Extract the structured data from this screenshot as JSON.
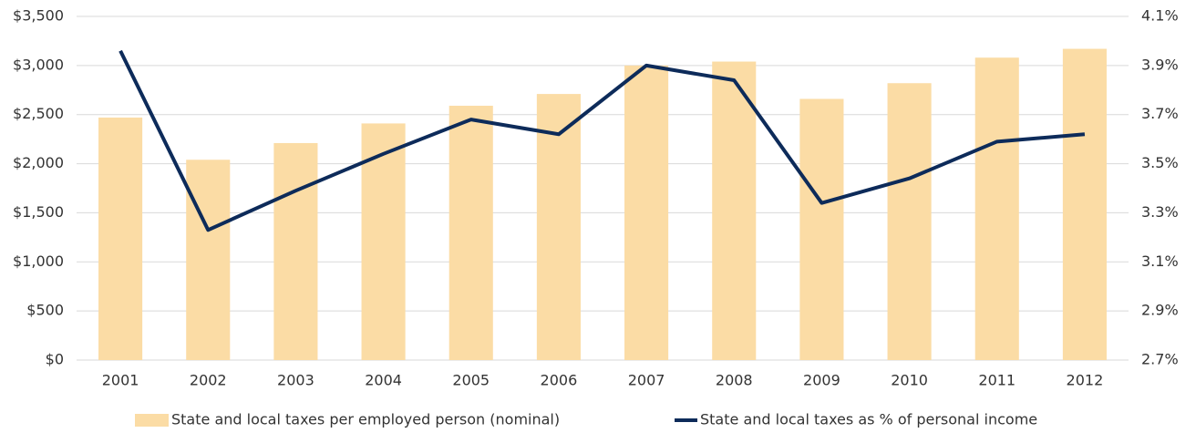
{
  "chart_data": {
    "type": "combo",
    "categories": [
      "2001",
      "2002",
      "2003",
      "2004",
      "2005",
      "2006",
      "2007",
      "2008",
      "2009",
      "2010",
      "2011",
      "2012"
    ],
    "series": [
      {
        "name": "State and local taxes per employed person (nominal)",
        "type": "bar",
        "color": "#fbdca5",
        "values": [
          2470,
          2040,
          2210,
          2410,
          2590,
          2710,
          3000,
          3040,
          2660,
          2820,
          3080,
          3170
        ]
      },
      {
        "name": "State and local taxes as % of personal income",
        "type": "line",
        "axis": "y2",
        "color": "#0d2b5a",
        "values": [
          3.96,
          3.23,
          3.39,
          3.54,
          3.68,
          3.62,
          3.9,
          3.84,
          3.34,
          3.44,
          3.59,
          3.62
        ]
      }
    ],
    "ylim": [
      0,
      3500
    ],
    "yticks": [
      {
        "value": 0,
        "label": "$0"
      },
      {
        "value": 500,
        "label": "$500"
      },
      {
        "value": 1000,
        "label": "$1,000"
      },
      {
        "value": 1500,
        "label": "$1,500"
      },
      {
        "value": 2000,
        "label": "$2,000"
      },
      {
        "value": 2500,
        "label": "$2,500"
      },
      {
        "value": 3000,
        "label": "$3,000"
      },
      {
        "value": 3500,
        "label": "$3,500"
      }
    ],
    "y2lim": [
      2.7,
      4.1
    ],
    "y2ticks": [
      {
        "value": 2.7,
        "label": "2.7%"
      },
      {
        "value": 2.9,
        "label": "2.9%"
      },
      {
        "value": 3.1,
        "label": "3.1%"
      },
      {
        "value": 3.3,
        "label": "3.3%"
      },
      {
        "value": 3.5,
        "label": "3.5%"
      },
      {
        "value": 3.7,
        "label": "3.7%"
      },
      {
        "value": 3.9,
        "label": "3.9%"
      },
      {
        "value": 4.1,
        "label": "4.1%"
      }
    ],
    "grid": true,
    "legend": "bottom"
  }
}
